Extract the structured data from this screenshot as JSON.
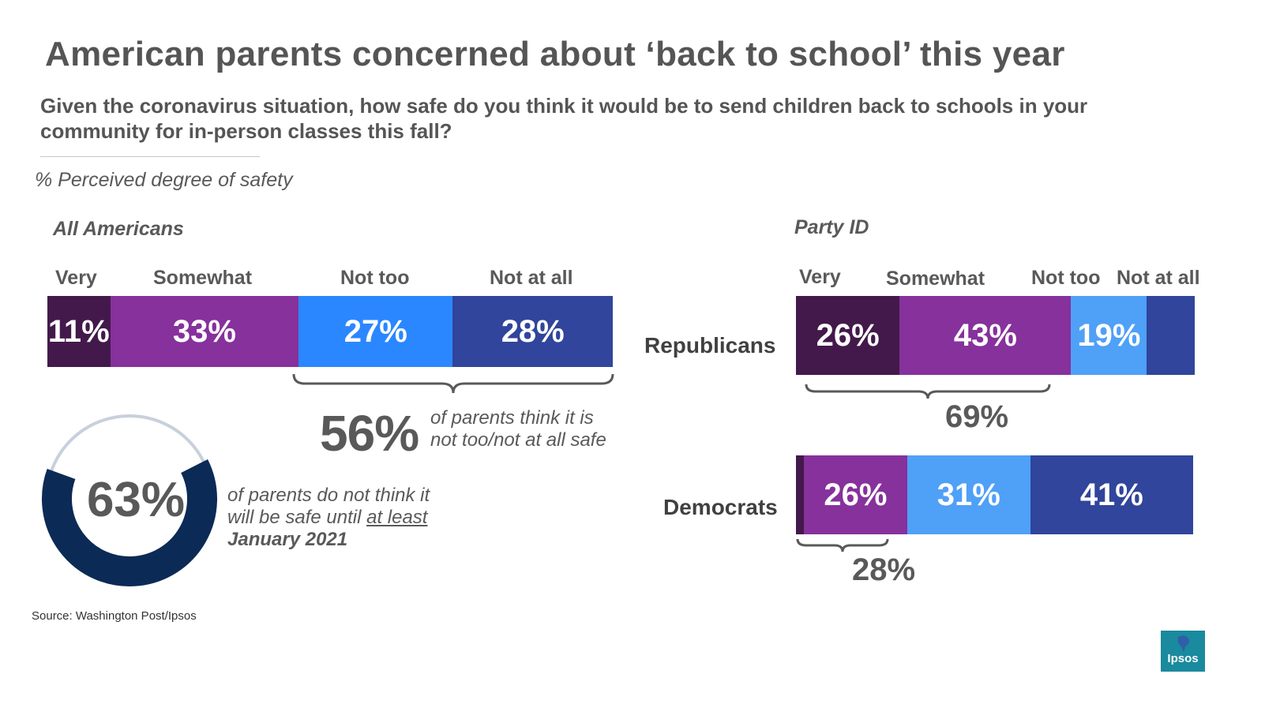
{
  "header": {
    "title": "American parents concerned about ‘back to school’ this year",
    "question": "Given the coronavirus situation, how safe do you think it would be to send children back to schools in your community for in-person classes this fall?",
    "measure": "% Perceived degree of safety"
  },
  "colors": {
    "very": "#43194b",
    "somewhat": "#86319c",
    "not_too_all": "#2b87ff",
    "not_too_party": "#4fa0f7",
    "not_at_all": "#30459b",
    "donut_main": "#0b2a55",
    "donut_rest": "#c8d0dc"
  },
  "chart_data": [
    {
      "type": "bar",
      "orientation": "horizontal-stacked",
      "title": "All Americans",
      "categories": [
        "Very",
        "Somewhat",
        "Not too",
        "Not at all"
      ],
      "series": [
        {
          "name": "All Americans",
          "values": [
            11,
            33,
            27,
            28
          ],
          "labels": [
            "11%",
            "33%",
            "27%",
            "28%"
          ]
        }
      ],
      "annotation": {
        "value": "56%",
        "text_line1": "of parents think it is",
        "text_line2": "not too/not at all safe"
      }
    },
    {
      "type": "bar",
      "orientation": "horizontal-stacked",
      "title": "Party ID",
      "categories": [
        "Very",
        "Somewhat",
        "Not too",
        "Not at all"
      ],
      "series": [
        {
          "name": "Republicans",
          "values": [
            26,
            43,
            19,
            12
          ],
          "labels": [
            "26%",
            "43%",
            "19%",
            ""
          ],
          "bracket": "69%"
        },
        {
          "name": "Democrats",
          "values": [
            2,
            26,
            31,
            41
          ],
          "labels": [
            "",
            "26%",
            "31%",
            "41%"
          ],
          "bracket": "28%"
        }
      ]
    },
    {
      "type": "pie",
      "style": "donut",
      "values": [
        63,
        37
      ],
      "label": "63%",
      "text_line1": "of parents do not think it",
      "text_line2a": "will be safe until ",
      "text_line2b": "at least",
      "text_line3": "January 2021"
    }
  ],
  "footer": {
    "source": "Source: Washington Post/Ipsos",
    "logo_text": "Ipsos"
  }
}
